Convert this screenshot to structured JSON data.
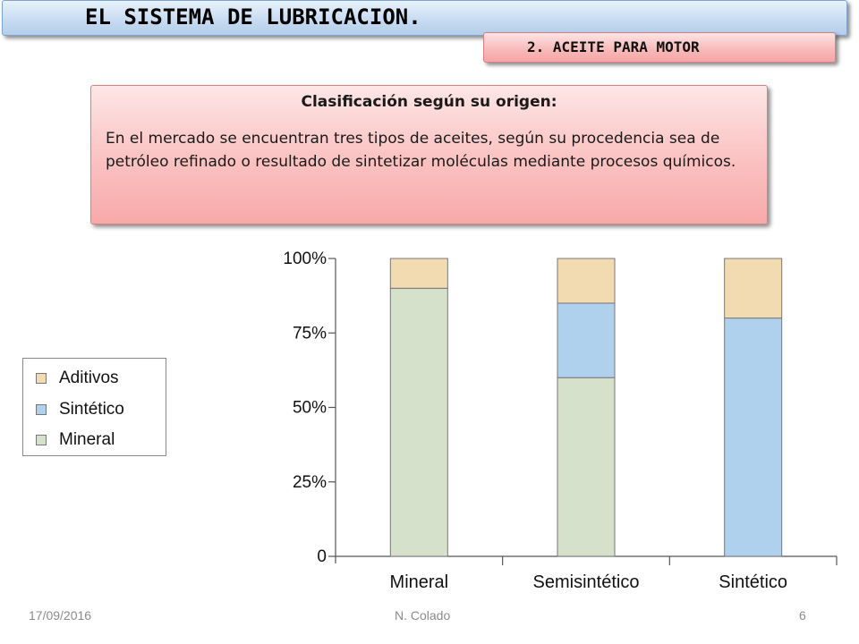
{
  "header": {
    "title": "EL SISTEMA DE LUBRICACION.",
    "subtitle": "2. ACEITE PARA MOTOR"
  },
  "info": {
    "heading": "Clasificación según su origen:",
    "body": "En el mercado se encuentran tres tipos de aceites, según su procedencia sea de petróleo refinado o resultado de sintetizar moléculas mediante procesos químicos."
  },
  "legend": {
    "items": [
      {
        "label": "Aditivos",
        "color": "#f3dbb1"
      },
      {
        "label": "Sintético",
        "color": "#b0d1ee"
      },
      {
        "label": "Mineral",
        "color": "#d6e1cc"
      }
    ]
  },
  "chart_data": {
    "type": "bar",
    "stacked": true,
    "categories": [
      "Mineral",
      "Semisintético",
      "Sintético"
    ],
    "series": [
      {
        "name": "Mineral",
        "color": "#d6e1cc",
        "values": [
          90,
          60,
          0
        ]
      },
      {
        "name": "Sintético",
        "color": "#b0d1ee",
        "values": [
          0,
          25,
          80
        ]
      },
      {
        "name": "Aditivos",
        "color": "#f3dbb1",
        "values": [
          10,
          15,
          20
        ]
      }
    ],
    "ylim": [
      0,
      100
    ],
    "yticks": [
      0,
      25,
      50,
      75,
      100
    ],
    "ytick_labels": [
      "0",
      "25%",
      "50%",
      "75%",
      "100%"
    ],
    "legend_position": "left",
    "grid": false
  },
  "footer": {
    "date": "17/09/2016",
    "author": "N. Colado",
    "page": "6"
  }
}
